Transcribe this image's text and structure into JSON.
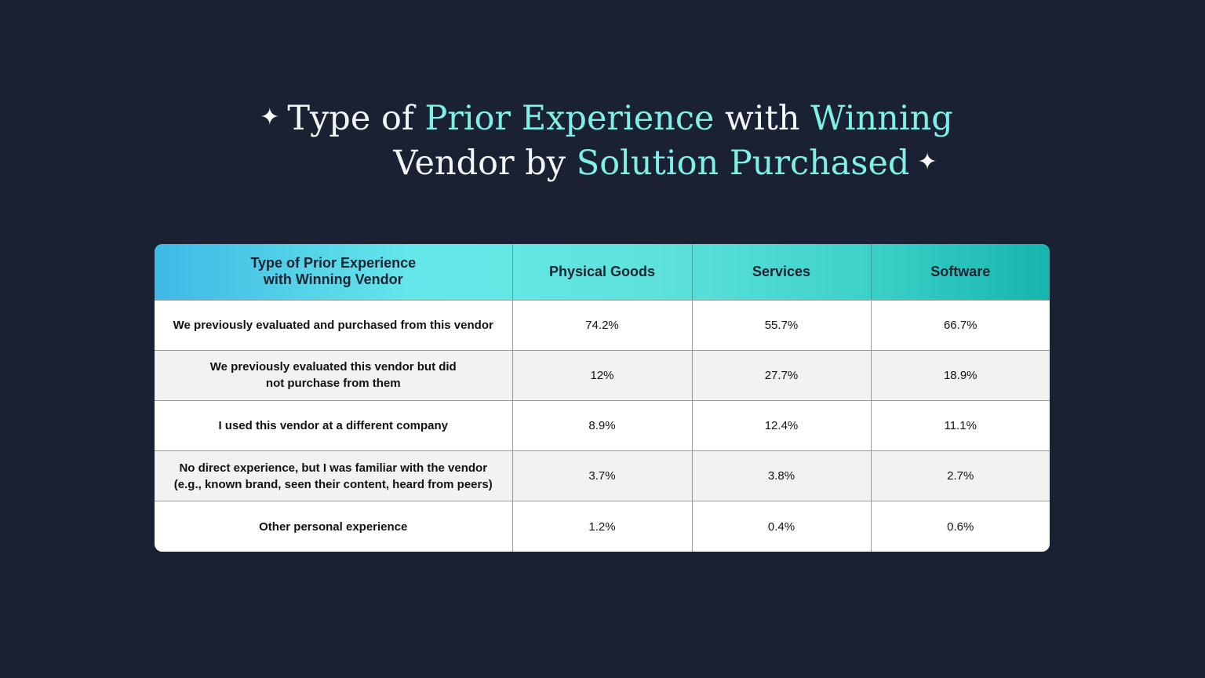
{
  "header": {
    "title_line1_white_a": "Type of ",
    "title_line1_accent_a": "Prior Experience",
    "title_line1_white_b": " with ",
    "title_line1_accent_b": "Winning",
    "title_line2_white_a": "Vendor by ",
    "title_line2_accent_a": "Solution Purchased",
    "sparkle_icon": "four-point-star"
  },
  "colors": {
    "background": "#1a2133",
    "accent_text": "#7ff0e6",
    "header_gradient_start": "#3fb8e6",
    "header_gradient_end": "#16b5ad"
  },
  "chart_data": {
    "type": "table",
    "title": "Type of Prior Experience with Winning Vendor by Solution Purchased",
    "columns": [
      "Type of Prior Experience with Winning Vendor",
      "Physical Goods",
      "Services",
      "Software"
    ],
    "header_first_line1": "Type of Prior Experience",
    "header_first_line2": "with Winning Vendor",
    "rows": [
      {
        "label_line1": "We previously evaluated and purchased from this vendor",
        "label_line2": "",
        "values": [
          "74.2%",
          "55.7%",
          "66.7%"
        ]
      },
      {
        "label_line1": "We previously evaluated this vendor but did",
        "label_line2": "not purchase from them",
        "values": [
          "12%",
          "27.7%",
          "18.9%"
        ]
      },
      {
        "label_line1": "I used this vendor at a different company",
        "label_line2": "",
        "values": [
          "8.9%",
          "12.4%",
          "11.1%"
        ]
      },
      {
        "label_line1": "No direct experience, but I was familiar with the vendor",
        "label_line2": "(e.g., known brand, seen their content, heard from peers)",
        "values": [
          "3.7%",
          "3.8%",
          "2.7%"
        ]
      },
      {
        "label_line1": "Other personal experience",
        "label_line2": "",
        "values": [
          "1.2%",
          "0.4%",
          "0.6%"
        ]
      }
    ]
  }
}
